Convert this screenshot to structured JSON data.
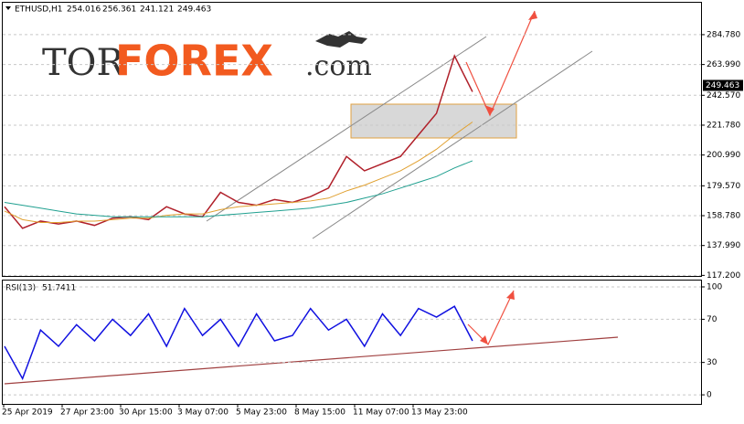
{
  "header": {
    "symbol": "ETHUSD,H1",
    "open": 254.016,
    "high": 256.361,
    "low": 241.121,
    "close": 249.463
  },
  "logo": {
    "left": "TOR",
    "middle": "FOREX",
    "right": ".com"
  },
  "chart_data": [
    {
      "type": "line",
      "x": [
        0,
        1,
        2,
        3,
        4,
        5,
        6,
        7,
        8,
        9,
        10,
        11,
        12,
        13,
        14,
        15,
        16,
        17,
        18,
        19,
        20,
        21,
        22,
        23,
        24,
        25,
        26
      ],
      "xlim": [
        -0.1,
        38.7
      ],
      "series": [
        {
          "color": "#b0202a",
          "values": [
            165,
            150,
            155,
            153,
            155,
            152,
            157,
            158,
            156,
            165,
            160,
            158,
            175,
            168,
            166,
            170,
            168,
            172,
            178,
            200,
            190,
            195,
            200,
            215,
            230,
            270,
            245
          ]
        },
        {
          "color": "#e0a030",
          "values": [
            162,
            156,
            154,
            154,
            155,
            155,
            156,
            157,
            157,
            159,
            160,
            160,
            163,
            165,
            166,
            167,
            168,
            169,
            171,
            176,
            180,
            185,
            190,
            197,
            205,
            215,
            224
          ]
        },
        {
          "color": "#20a090",
          "values": [
            168,
            166,
            164,
            162,
            160,
            159,
            158,
            158,
            158,
            158,
            158,
            158,
            159,
            160,
            161,
            162,
            163,
            164,
            166,
            168,
            171,
            174,
            178,
            182,
            186,
            192,
            197
          ]
        }
      ],
      "ylim": [
        116.8,
        307.0
      ],
      "yticks": [
        {
          "value": 284.78,
          "label": "284.780"
        },
        {
          "value": 263.99,
          "label": "263.990"
        },
        {
          "value": 242.57,
          "label": "242.570"
        },
        {
          "value": 221.78,
          "label": "221.780"
        },
        {
          "value": 200.99,
          "label": "200.990"
        },
        {
          "value": 179.57,
          "label": "179.570"
        },
        {
          "value": 158.78,
          "label": "158.780"
        },
        {
          "value": 137.99,
          "label": "137.990"
        },
        {
          "value": 117.2,
          "label": "117.200"
        }
      ],
      "grid": true
    },
    {
      "type": "line",
      "title": "RSI(13)",
      "value": 51.7411,
      "x": [
        0,
        1,
        2,
        3,
        4,
        5,
        6,
        7,
        8,
        9,
        10,
        11,
        12,
        13,
        14,
        15,
        16,
        17,
        18,
        19,
        20,
        21,
        22,
        23,
        24,
        25,
        26
      ],
      "xlim": [
        -0.1,
        38.7
      ],
      "series": [
        {
          "color": "#1010e0",
          "values": [
            45,
            15,
            60,
            45,
            65,
            50,
            70,
            55,
            75,
            45,
            80,
            55,
            70,
            45,
            75,
            50,
            55,
            80,
            60,
            70,
            45,
            75,
            55,
            80,
            72,
            82,
            50
          ]
        }
      ],
      "ylim": [
        -8.4,
        105.9
      ],
      "yticks": [
        100,
        70,
        30,
        0
      ],
      "grid": true
    }
  ],
  "time_labels": [
    "25 Apr 2019",
    "27 Apr 23:00",
    "30 Apr 15:00",
    "3 May 07:00",
    "5 May 23:00",
    "8 May 15:00",
    "11 May 07:00",
    "13 May 23:00"
  ]
}
